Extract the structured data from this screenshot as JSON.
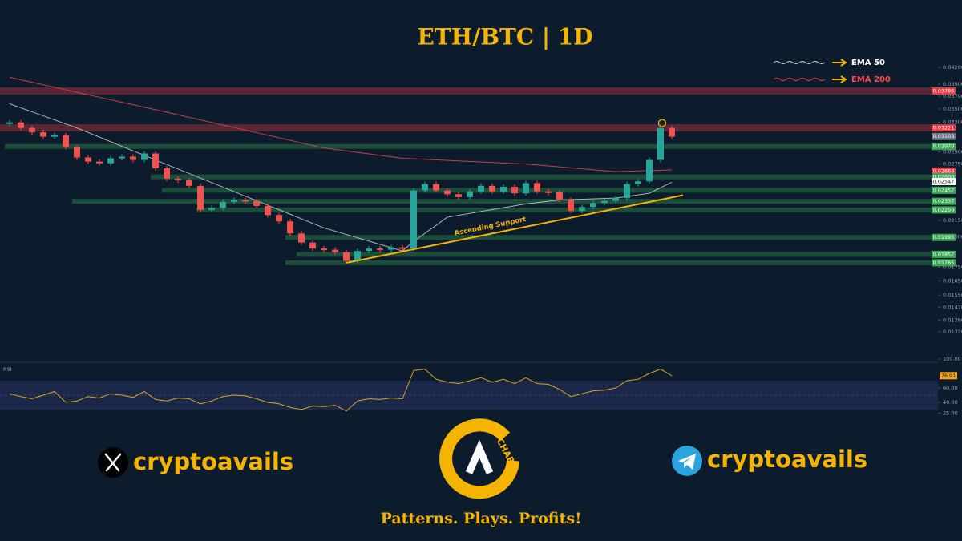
{
  "chart_data": {
    "type": "candlestick",
    "title": "ETH/BTC | 1D",
    "log_scale": true,
    "ylim": [
      0.0127,
      0.0441
    ],
    "yticks": [
      {
        "value": 0.042,
        "label": "0.04200"
      },
      {
        "value": 0.039,
        "label": "0.03900"
      },
      {
        "value": 0.037,
        "label": "0.03700"
      },
      {
        "value": 0.035,
        "label": "0.03500"
      },
      {
        "value": 0.033,
        "label": "0.03300"
      },
      {
        "value": 0.029,
        "label": "0.02900"
      },
      {
        "value": 0.0275,
        "label": "0.02750"
      },
      {
        "value": 0.0215,
        "label": "0.02150"
      },
      {
        "value": 0.02,
        "label": "0.02000"
      },
      {
        "value": 0.0175,
        "label": "0.01750"
      },
      {
        "value": 0.0165,
        "label": "0.01650"
      },
      {
        "value": 0.0155,
        "label": "0.01550"
      },
      {
        "value": 0.0147,
        "label": "0.01470"
      },
      {
        "value": 0.0139,
        "label": "0.01390"
      },
      {
        "value": 0.0132,
        "label": "0.01320"
      }
    ],
    "up_color": "#26a69a",
    "down_color": "#ef5350",
    "closes": [
      0.033,
      0.0322,
      0.0316,
      0.031,
      0.0312,
      0.0296,
      0.0283,
      0.0278,
      0.0276,
      0.0282,
      0.0284,
      0.028,
      0.0288,
      0.027,
      0.0258,
      0.0256,
      0.025,
      0.0225,
      0.0227,
      0.0233,
      0.0235,
      0.0234,
      0.0229,
      0.022,
      0.0214,
      0.0203,
      0.0195,
      0.019,
      0.0189,
      0.0187,
      0.018,
      0.0188,
      0.019,
      0.0189,
      0.0191,
      0.019,
      0.0245,
      0.0252,
      0.0245,
      0.0241,
      0.0238,
      0.0244,
      0.025,
      0.0244,
      0.0249,
      0.0242,
      0.0253,
      0.0244,
      0.0243,
      0.0235,
      0.0224,
      0.0228,
      0.0232,
      0.0234,
      0.0237,
      0.0252,
      0.0255,
      0.028,
      0.0322,
      0.031
    ],
    "series": [
      {
        "name": "EMA 50",
        "color": "#c9cdd6",
        "x": [
          0,
          6,
          13,
          21,
          28,
          35,
          36,
          39,
          46,
          49,
          54,
          57,
          59
        ],
        "values": [
          0.0358,
          0.0322,
          0.028,
          0.0239,
          0.0208,
          0.0188,
          0.0196,
          0.0218,
          0.0231,
          0.0235,
          0.0237,
          0.0242,
          0.0254
        ]
      },
      {
        "name": "EMA 200",
        "color": "#e0454f",
        "x": [
          0,
          14,
          28,
          35,
          46,
          54,
          59
        ],
        "values": [
          0.0402,
          0.0345,
          0.0295,
          0.0282,
          0.0275,
          0.0266,
          0.0268
        ]
      }
    ],
    "levels": [
      {
        "value": 0.03786,
        "style": "band",
        "color": "#e53945",
        "from": 0
      },
      {
        "value": 0.03221,
        "style": "band",
        "color": "#e53945",
        "from": 0
      },
      {
        "value": 0.03103,
        "style": "tag",
        "color": "#6b7280"
      },
      {
        "value": 0.0297,
        "label": "0.02970",
        "style": "line",
        "color": "#3aa655",
        "from": 0
      },
      {
        "value": 0.02668,
        "style": "tag",
        "color": "#e53945"
      },
      {
        "value": 0.026,
        "label": "0.02600",
        "style": "line",
        "color": "#3aa655",
        "from": 13
      },
      {
        "value": 0.02547,
        "style": "tag",
        "color": "#ffffff"
      },
      {
        "value": 0.02452,
        "style": "line",
        "color": "#3aa655",
        "from": 14
      },
      {
        "value": 0.02337,
        "style": "line",
        "color": "#3aa655",
        "from": 6
      },
      {
        "value": 0.0225,
        "label": "0.02250",
        "style": "line",
        "color": "#3aa655",
        "from": 17
      },
      {
        "value": 0.01995,
        "style": "line",
        "color": "#3aa655",
        "from": 25
      },
      {
        "value": 0.01852,
        "style": "line",
        "color": "#3aa655",
        "from": 26
      },
      {
        "value": 0.01785,
        "style": "line",
        "color": "#3aa655",
        "from": 25
      }
    ],
    "trendline": {
      "label": "Ascending Support",
      "color": "#f5b400",
      "from": [
        30,
        0.01785
      ],
      "to": [
        60,
        0.024
      ]
    },
    "rsi": {
      "label": "RSI",
      "color": "#d9a520",
      "ylim": [
        20,
        100
      ],
      "band": [
        30,
        70
      ],
      "yticks": [
        {
          "value": 100,
          "label": "100.00"
        },
        {
          "value": 60,
          "label": "60.00"
        },
        {
          "value": 40,
          "label": "40.00"
        },
        {
          "value": 25,
          "label": "25.00"
        }
      ],
      "values": [
        52,
        48,
        45,
        50,
        55,
        40,
        42,
        48,
        46,
        52,
        50,
        47,
        55,
        44,
        42,
        46,
        45,
        38,
        42,
        48,
        50,
        49,
        45,
        40,
        38,
        33,
        30,
        35,
        34,
        36,
        28,
        42,
        45,
        44,
        46,
        45,
        84,
        86,
        72,
        68,
        66,
        70,
        74,
        68,
        72,
        66,
        74,
        66,
        65,
        58,
        48,
        52,
        56,
        57,
        60,
        70,
        72,
        80,
        86,
        76.91
      ]
    }
  },
  "branding": {
    "x_handle": "cryptoavails",
    "telegram_handle": "cryptoavails",
    "logo_text": "CHART",
    "tagline": "Patterns. Plays. Profits!"
  }
}
